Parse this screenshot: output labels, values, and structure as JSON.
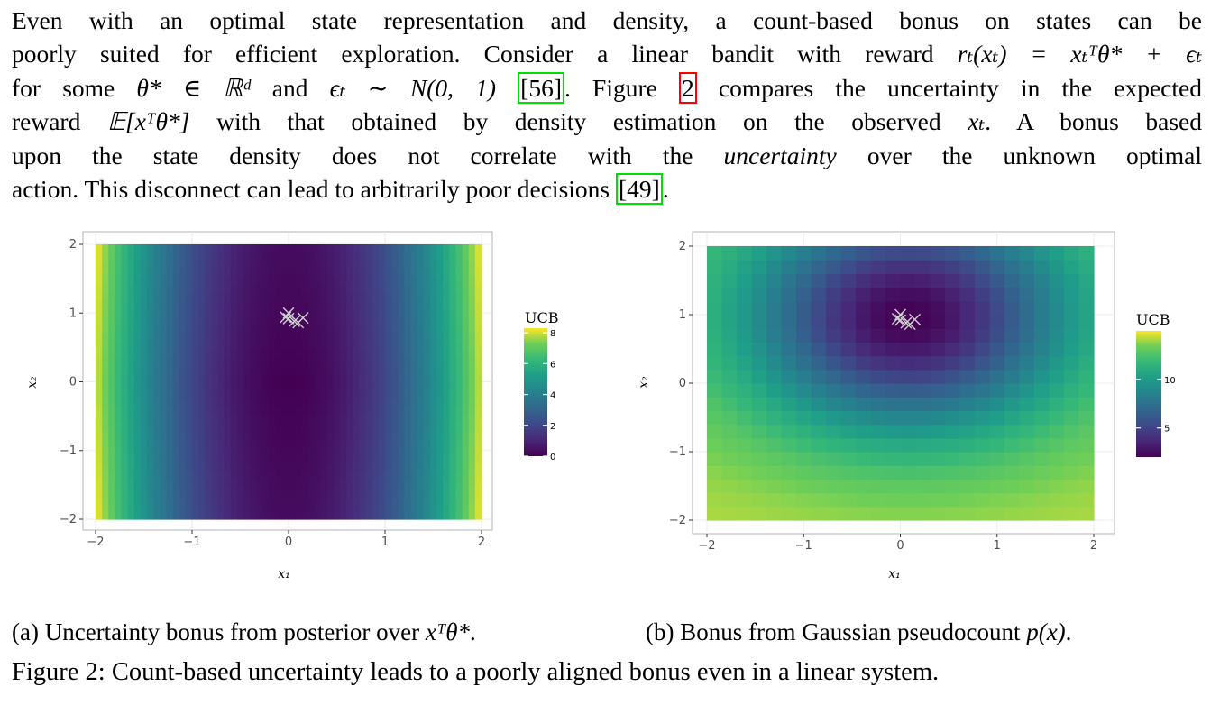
{
  "paragraph": {
    "line1": "Even with an optimal state representation and density, a count-based bonus on states can be",
    "line2a": "poorly suited for efficient exploration.  Consider a linear bandit with reward ",
    "line2math": "rₜ(xₜ) = xₜᵀθ* + ϵₜ",
    "line3a": "for some ",
    "line3math1": "θ* ∈ ℝᵈ",
    "line3b": " and ",
    "line3math2": "ϵₜ ∼ N(0, 1)",
    "ref1": "56",
    "line3c": ".  Figure ",
    "ref2": "2",
    "line3d": " compares the uncertainty in the expected",
    "line4a": "reward ",
    "line4math": "𝔼[xᵀθ*]",
    "line4b": " with that obtained by density estimation on the observed ",
    "line4math2": "xₜ",
    "line4c": ".  A bonus based",
    "line5a": "upon the state density does not correlate with the ",
    "line5em": "uncertainty",
    "line5b": " over the unknown optimal",
    "line6a": "action.  This disconnect can lead to arbitrarily poor decisions ",
    "ref3": "49",
    "line6b": "."
  },
  "figure_a": {
    "legend_title": "UCB",
    "xlabel": "x₁",
    "ylabel": "x₂"
  },
  "figure_b": {
    "legend_title": "UCB",
    "xlabel": "x₁",
    "ylabel": "x₂"
  },
  "chart_data": [
    {
      "type": "heatmap",
      "panel": "a",
      "x_ticks": [
        "−2",
        "−1",
        "0",
        "1",
        "2"
      ],
      "y_ticks": [
        "−2",
        "−1",
        "0",
        "1",
        "2"
      ],
      "xlim": [
        -2,
        2
      ],
      "ylim": [
        -2,
        2
      ],
      "legend_ticks": [
        "0",
        "2",
        "4",
        "6",
        "8"
      ],
      "legend_values": [
        0,
        2,
        4,
        6,
        8
      ],
      "value_range": [
        0,
        8.3
      ],
      "colormap": "viridis",
      "observations": [
        [
          0.0,
          1.0
        ],
        [
          -0.03,
          0.94
        ],
        [
          0.06,
          0.88
        ],
        [
          0.15,
          0.93
        ],
        [
          0.1,
          0.86
        ],
        [
          0.0,
          0.92
        ]
      ]
    },
    {
      "type": "heatmap",
      "panel": "b",
      "x_ticks": [
        "−2",
        "−1",
        "0",
        "1",
        "2"
      ],
      "y_ticks": [
        "−2",
        "−1",
        "0",
        "1",
        "2"
      ],
      "xlim": [
        -2,
        2
      ],
      "ylim": [
        -2,
        2
      ],
      "legend_ticks": [
        "5",
        "10"
      ],
      "legend_values": [
        5,
        10
      ],
      "value_range": [
        2,
        15
      ],
      "colormap": "viridis",
      "observations": [
        [
          0.0,
          1.0
        ],
        [
          -0.03,
          0.94
        ],
        [
          0.06,
          0.88
        ],
        [
          0.15,
          0.93
        ],
        [
          0.1,
          0.86
        ],
        [
          0.0,
          0.92
        ]
      ]
    }
  ],
  "captions": {
    "a_prefix": "(a) Uncertainty bonus from posterior over ",
    "a_math": "xᵀθ*",
    "a_suffix": ".",
    "b_prefix": "(b) Bonus from Gaussian pseudocount ",
    "b_math": "p(x)",
    "b_suffix": ".",
    "main": "Figure 2:  Count-based uncertainty leads to a poorly aligned bonus even in a linear system."
  }
}
